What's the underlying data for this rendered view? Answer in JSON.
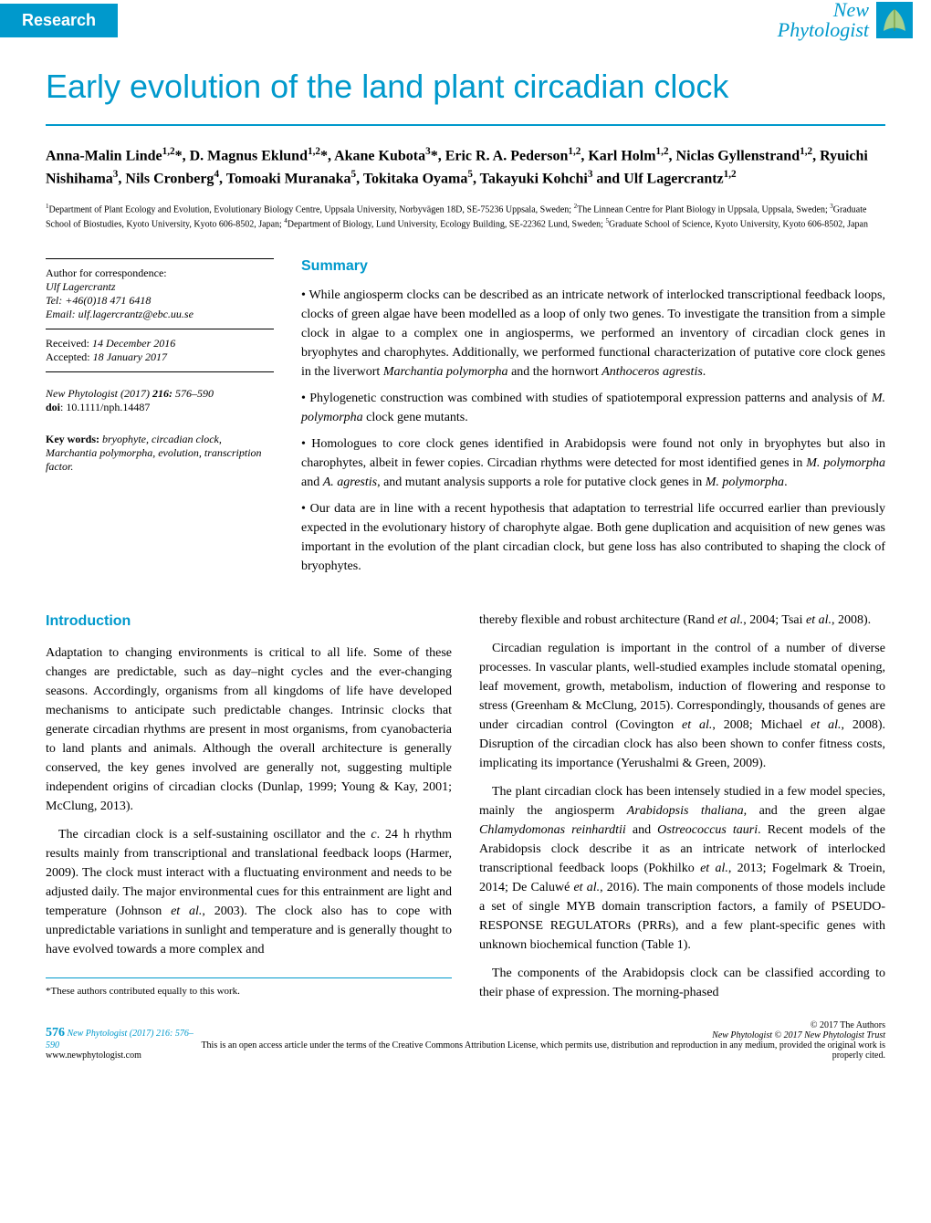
{
  "header": {
    "tab": "Research",
    "journal_line1": "New",
    "journal_line2": "Phytologist"
  },
  "title": "Early evolution of the land plant circadian clock",
  "authors": "Anna-Malin Linde<sup>1,2</sup>*, D. Magnus Eklund<sup>1,2</sup>*, Akane Kubota<sup>3</sup>*, Eric R. A. Pederson<sup>1,2</sup>, Karl Holm<sup>1,2</sup>, Niclas Gyllenstrand<sup>1,2</sup>, Ryuichi Nishihama<sup>3</sup>, Nils Cronberg<sup>4</sup>, Tomoaki Muranaka<sup>5</sup>, Tokitaka Oyama<sup>5</sup>, Takayuki Kohchi<sup>3</sup> and Ulf Lagercrantz<sup>1,2</sup>",
  "affiliations": "<sup>1</sup>Department of Plant Ecology and Evolution, Evolutionary Biology Centre, Uppsala University, Norbyvägen 18D, SE-75236 Uppsala, Sweden; <sup>2</sup>The Linnean Centre for Plant Biology in Uppsala, Uppsala, Sweden; <sup>3</sup>Graduate School of Biostudies, Kyoto University, Kyoto 606-8502, Japan; <sup>4</sup>Department of Biology, Lund University, Ecology Building, SE-22362 Lund, Sweden; <sup>5</sup>Graduate School of Science, Kyoto University, Kyoto 606-8502, Japan",
  "sidebar": {
    "corr_label": "Author for correspondence:",
    "corr_name": "Ulf Lagercrantz",
    "corr_tel": "Tel: +46(0)18 471 6418",
    "corr_email": "Email: ulf.lagercrantz@ebc.uu.se",
    "received": "Received: 14 December 2016",
    "accepted": "Accepted: 18 January 2017",
    "citation": "New Phytologist (2017) 216: 576–590",
    "doi_label": "doi",
    "doi": ": 10.1111/nph.14487",
    "keywords_label": "Key words: ",
    "keywords": "bryophyte, circadian clock, Marchantia polymorpha, evolution, transcription factor."
  },
  "summary": {
    "heading": "Summary",
    "items": [
      "While angiosperm clocks can be described as an intricate network of interlocked transcriptional feedback loops, clocks of green algae have been modelled as a loop of only two genes. To investigate the transition from a simple clock in algae to a complex one in angiosperms, we performed an inventory of circadian clock genes in bryophytes and charophytes. Additionally, we performed functional characterization of putative core clock genes in the liverwort <i>Marchantia polymorpha</i> and the hornwort <i>Anthoceros agrestis</i>.",
      "Phylogenetic construction was combined with studies of spatiotemporal expression patterns and analysis of <i>M. polymorpha</i> clock gene mutants.",
      "Homologues to core clock genes identified in Arabidopsis were found not only in bryophytes but also in charophytes, albeit in fewer copies. Circadian rhythms were detected for most identified genes in <i>M. polymorpha</i> and <i>A. agrestis</i>, and mutant analysis supports a role for putative clock genes in <i>M. polymorpha</i>.",
      "Our data are in line with a recent hypothesis that adaptation to terrestrial life occurred earlier than previously expected in the evolutionary history of charophyte algae. Both gene duplication and acquisition of new genes was important in the evolution of the plant circadian clock, but gene loss has also contributed to shaping the clock of bryophytes."
    ]
  },
  "intro": {
    "heading": "Introduction",
    "left_paras": [
      "Adaptation to changing environments is critical to all life. Some of these changes are predictable, such as day–night cycles and the ever-changing seasons. Accordingly, organisms from all kingdoms of life have developed mechanisms to anticipate such predictable changes. Intrinsic clocks that generate circadian rhythms are present in most organisms, from cyanobacteria to land plants and animals. Although the overall architecture is generally conserved, the key genes involved are generally not, suggesting multiple independent origins of circadian clocks (Dunlap, 1999; Young & Kay, 2001; McClung, 2013).",
      "The circadian clock is a self-sustaining oscillator and the <i>c</i>. 24 h rhythm results mainly from transcriptional and translational feedback loops (Harmer, 2009). The clock must interact with a fluctuating environment and needs to be adjusted daily. The major environmental cues for this entrainment are light and temperature (Johnson <i>et al.</i>, 2003). The clock also has to cope with unpredictable variations in sunlight and temperature and is generally thought to have evolved towards a more complex and"
    ],
    "right_paras": [
      "thereby flexible and robust architecture (Rand <i>et al.</i>, 2004; Tsai <i>et al.</i>, 2008).",
      "Circadian regulation is important in the control of a number of diverse processes. In vascular plants, well-studied examples include stomatal opening, leaf movement, growth, metabolism, induction of flowering and response to stress (Greenham & McClung, 2015). Correspondingly, thousands of genes are under circadian control (Covington <i>et al.</i>, 2008; Michael <i>et al.</i>, 2008). Disruption of the circadian clock has also been shown to confer fitness costs, implicating its importance (Yerushalmi & Green, 2009).",
      "The plant circadian clock has been intensely studied in a few model species, mainly the angiosperm <i>Arabidopsis thaliana</i>, and the green algae <i>Chlamydomonas reinhardtii</i> and <i>Ostreococcus tauri</i>. Recent models of the Arabidopsis clock describe it as an intricate network of interlocked transcriptional feedback loops (Pokhilko <i>et al.</i>, 2013; Fogelmark & Troein, 2014; De Caluwé <i>et al.</i>, 2016). The main components of those models include a set of single MYB domain transcription factors, a family of PSEUDO-RESPONSE REGULATORs (PRRs), and a few plant-specific genes with unknown biochemical function (Table 1).",
      "The components of the Arabidopsis clock can be classified according to their phase of expression. The morning-phased"
    ]
  },
  "footnote": "*These authors contributed equally to this work.",
  "footer": {
    "page_num": "576",
    "citation_left": "New Phytologist (2017) 216: 576–590",
    "website": "www.newphytologist.com",
    "copyright": "© 2017 The Authors",
    "trust": "New Phytologist © 2017 New Phytologist Trust",
    "license": "This is an open access article under the terms of the Creative Commons Attribution License, which permits use, distribution and reproduction in any medium, provided the original work is properly cited."
  },
  "colors": {
    "brand": "#0099cc",
    "text": "#000000",
    "bg": "#ffffff"
  }
}
